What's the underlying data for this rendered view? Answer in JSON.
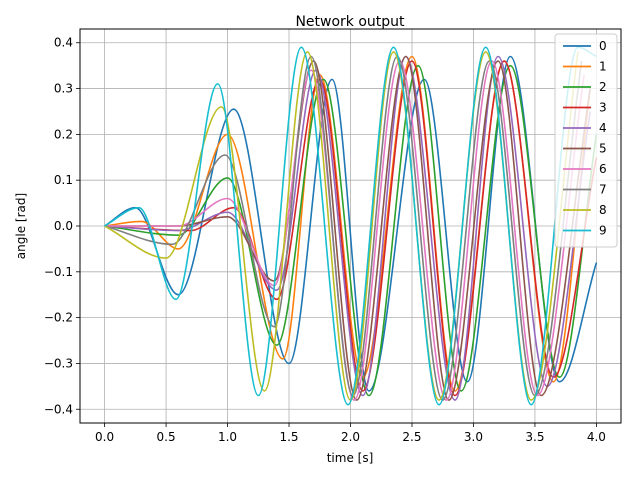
{
  "chart_data": {
    "type": "line",
    "title": "Network output",
    "xlabel": "time [s]",
    "ylabel": "angle [rad]",
    "xlim": [
      -0.2,
      4.2
    ],
    "ylim": [
      -0.43,
      0.43
    ],
    "xticks": [
      0.0,
      0.5,
      1.0,
      1.5,
      2.0,
      2.5,
      3.0,
      3.5,
      4.0
    ],
    "xtick_labels": [
      "0.0",
      "0.5",
      "1.0",
      "1.5",
      "2.0",
      "2.5",
      "3.0",
      "3.5",
      "4.0"
    ],
    "yticks": [
      -0.4,
      -0.3,
      -0.2,
      -0.1,
      0.0,
      0.1,
      0.2,
      0.3,
      0.4
    ],
    "ytick_labels": [
      "−0.4",
      "−0.3",
      "−0.2",
      "−0.1",
      "0.0",
      "0.1",
      "0.2",
      "0.3",
      "0.4"
    ],
    "grid": true,
    "legend_position": "top-right",
    "series": [
      {
        "name": "0",
        "color": "#1f77b4",
        "key_points": [
          [
            0.0,
            0.0
          ],
          [
            0.25,
            0.04
          ],
          [
            0.6,
            -0.15
          ],
          [
            1.05,
            0.255
          ],
          [
            1.5,
            -0.3
          ],
          [
            1.85,
            0.32
          ],
          [
            2.15,
            -0.36
          ],
          [
            2.6,
            0.32
          ],
          [
            2.95,
            -0.34
          ],
          [
            3.3,
            0.37
          ],
          [
            3.7,
            -0.34
          ],
          [
            4.0,
            -0.08
          ]
        ]
      },
      {
        "name": "1",
        "color": "#ff7f0e",
        "key_points": [
          [
            0.0,
            0.0
          ],
          [
            0.3,
            0.01
          ],
          [
            0.6,
            -0.05
          ],
          [
            1.0,
            0.2
          ],
          [
            1.45,
            -0.29
          ],
          [
            1.75,
            0.33
          ],
          [
            2.1,
            -0.33
          ],
          [
            2.5,
            0.37
          ],
          [
            2.85,
            -0.36
          ],
          [
            3.25,
            0.36
          ],
          [
            3.65,
            -0.34
          ],
          [
            3.95,
            0.3
          ]
        ]
      },
      {
        "name": "2",
        "color": "#2ca02c",
        "key_points": [
          [
            0.0,
            0.0
          ],
          [
            0.6,
            -0.02
          ],
          [
            1.0,
            0.105
          ],
          [
            1.4,
            -0.26
          ],
          [
            1.78,
            0.32
          ],
          [
            2.15,
            -0.37
          ],
          [
            2.55,
            0.35
          ],
          [
            2.9,
            -0.36
          ],
          [
            3.3,
            0.35
          ],
          [
            3.7,
            -0.33
          ],
          [
            4.0,
            0.2
          ]
        ]
      },
      {
        "name": "3",
        "color": "#d62728",
        "key_points": [
          [
            0.0,
            0.0
          ],
          [
            0.7,
            -0.01
          ],
          [
            1.05,
            0.04
          ],
          [
            1.4,
            -0.16
          ],
          [
            1.75,
            0.32
          ],
          [
            2.1,
            -0.36
          ],
          [
            2.5,
            0.36
          ],
          [
            2.85,
            -0.37
          ],
          [
            3.25,
            0.36
          ],
          [
            3.65,
            -0.33
          ],
          [
            4.0,
            0.15
          ]
        ]
      },
      {
        "name": "4",
        "color": "#9467bd",
        "key_points": [
          [
            0.0,
            0.0
          ],
          [
            0.6,
            -0.01
          ],
          [
            1.0,
            0.03
          ],
          [
            1.4,
            -0.14
          ],
          [
            1.72,
            0.34
          ],
          [
            2.1,
            -0.37
          ],
          [
            2.45,
            0.37
          ],
          [
            2.85,
            -0.38
          ],
          [
            3.2,
            0.37
          ],
          [
            3.6,
            -0.35
          ],
          [
            3.95,
            0.25
          ]
        ]
      },
      {
        "name": "5",
        "color": "#8c564b",
        "key_points": [
          [
            0.0,
            0.0
          ],
          [
            0.6,
            0.0
          ],
          [
            1.0,
            0.02
          ],
          [
            1.38,
            -0.12
          ],
          [
            1.7,
            0.36
          ],
          [
            2.05,
            -0.38
          ],
          [
            2.45,
            0.37
          ],
          [
            2.8,
            -0.38
          ],
          [
            3.2,
            0.36
          ],
          [
            3.55,
            -0.37
          ],
          [
            3.95,
            0.3
          ]
        ]
      },
      {
        "name": "6",
        "color": "#e377c2",
        "key_points": [
          [
            0.0,
            0.0
          ],
          [
            0.6,
            0.0
          ],
          [
            1.0,
            0.06
          ],
          [
            1.38,
            -0.13
          ],
          [
            1.68,
            0.34
          ],
          [
            2.03,
            -0.38
          ],
          [
            2.4,
            0.36
          ],
          [
            2.78,
            -0.38
          ],
          [
            3.15,
            0.36
          ],
          [
            3.52,
            -0.37
          ],
          [
            3.9,
            0.33
          ]
        ]
      },
      {
        "name": "7",
        "color": "#7f7f7f",
        "key_points": [
          [
            0.0,
            0.0
          ],
          [
            0.55,
            -0.04
          ],
          [
            0.98,
            0.155
          ],
          [
            1.38,
            -0.22
          ],
          [
            1.68,
            0.37
          ],
          [
            2.02,
            -0.37
          ],
          [
            2.38,
            0.37
          ],
          [
            2.75,
            -0.38
          ],
          [
            3.13,
            0.36
          ],
          [
            3.5,
            -0.37
          ],
          [
            3.88,
            0.36
          ]
        ]
      },
      {
        "name": "8",
        "color": "#bcbd22",
        "key_points": [
          [
            0.0,
            0.0
          ],
          [
            0.5,
            -0.07
          ],
          [
            0.95,
            0.26
          ],
          [
            1.3,
            -0.36
          ],
          [
            1.65,
            0.38
          ],
          [
            2.0,
            -0.38
          ],
          [
            2.35,
            0.38
          ],
          [
            2.72,
            -0.38
          ],
          [
            3.1,
            0.38
          ],
          [
            3.47,
            -0.38
          ],
          [
            3.85,
            0.38
          ]
        ]
      },
      {
        "name": "9",
        "color": "#17becf",
        "key_points": [
          [
            0.0,
            0.0
          ],
          [
            0.28,
            0.04
          ],
          [
            0.58,
            -0.16
          ],
          [
            0.92,
            0.31
          ],
          [
            1.25,
            -0.37
          ],
          [
            1.6,
            0.39
          ],
          [
            1.98,
            -0.39
          ],
          [
            2.35,
            0.39
          ],
          [
            2.72,
            -0.39
          ],
          [
            3.1,
            0.39
          ],
          [
            3.47,
            -0.39
          ],
          [
            3.85,
            0.39
          ],
          [
            4.0,
            0.37
          ]
        ]
      }
    ]
  }
}
